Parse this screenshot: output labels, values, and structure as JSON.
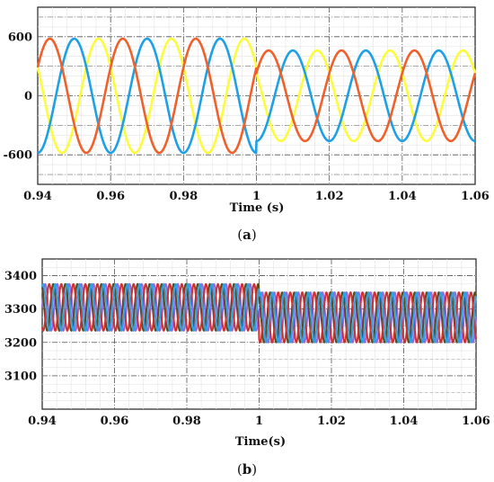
{
  "chart_data": [
    {
      "type": "line",
      "caption_letter": "a",
      "xlabel": "Time (s)",
      "ylabel": "",
      "xlim": [
        0.94,
        1.06
      ],
      "ylim": [
        -900,
        900
      ],
      "x_ticks": [
        "0.94",
        "0.96",
        "0.98",
        "1",
        "1.02",
        "1.04",
        "1.06"
      ],
      "y_ticks": [
        "600",
        "0",
        "-600"
      ],
      "grid": true,
      "frequency_hz": 50,
      "series": [
        {
          "color": "#fcfc3c",
          "phase_deg": 150,
          "amplitude_before": 580,
          "amplitude_after": 460,
          "change_time": 1.0
        },
        {
          "color": "#1ea0e6",
          "phase_deg": 270,
          "amplitude_before": 580,
          "amplitude_after": 460,
          "change_time": 1.0
        },
        {
          "color": "#f0602a",
          "phase_deg": 30,
          "amplitude_before": 580,
          "amplitude_after": 460,
          "change_time": 1.0
        }
      ]
    },
    {
      "type": "line",
      "caption_letter": "b",
      "xlabel": "Time(s)",
      "ylabel": "",
      "xlim": [
        0.94,
        1.06
      ],
      "ylim": [
        3000,
        3450
      ],
      "x_ticks": [
        "0.94",
        "0.96",
        "0.98",
        "1",
        "1.02",
        "1.04",
        "1.06"
      ],
      "y_ticks": [
        "3400",
        "3300",
        "3200",
        "3100"
      ],
      "grid": true,
      "frequency_hz": 300,
      "series": [
        {
          "color": "#9966e6",
          "phase_deg": 0,
          "min_before": 3235,
          "max_before": 3375,
          "min_after": 3200,
          "max_after": 3350,
          "change_time": 1.0
        },
        {
          "color": "#5a4a20",
          "phase_deg": 120,
          "min_before": 3235,
          "max_before": 3375,
          "min_after": 3200,
          "max_after": 3350,
          "change_time": 1.0
        },
        {
          "color": "#d03030",
          "phase_deg": 240,
          "min_before": 3235,
          "max_before": 3375,
          "min_after": 3200,
          "max_after": 3350,
          "change_time": 1.0
        },
        {
          "color": "#30a0e0",
          "phase_deg": 60,
          "min_before": 3235,
          "max_before": 3375,
          "min_after": 3200,
          "max_after": 3350,
          "change_time": 1.0
        }
      ]
    }
  ]
}
